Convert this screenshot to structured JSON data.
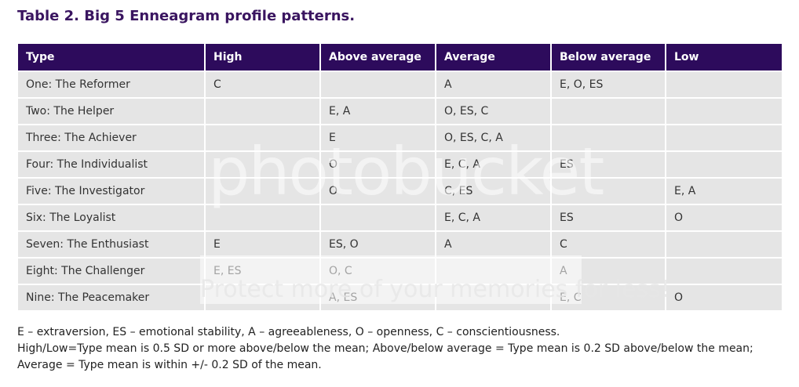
{
  "title": "Table 2. Big 5 Enneagram profile patterns.",
  "table": {
    "header": [
      "Type",
      "High",
      "Above average",
      "Average",
      "Below average",
      "Low"
    ],
    "rows": [
      [
        "One: The Reformer",
        "C",
        null,
        "A",
        "E, O, ES",
        null
      ],
      [
        "Two: The Helper",
        null,
        "E, A",
        "O, ES, C",
        null,
        null
      ],
      [
        "Three: The Achiever",
        null,
        "E",
        "O, ES, C, A",
        null,
        null
      ],
      [
        "Four: The Individualist",
        null,
        "O",
        "E, C, A",
        "ES",
        null
      ],
      [
        "Five: The Investigator",
        null,
        "O",
        "C, ES",
        null,
        "E, A"
      ],
      [
        "Six: The Loyalist",
        null,
        null,
        "E, C, A",
        "ES",
        "O"
      ],
      [
        "Seven: The Enthusiast",
        "E",
        "ES, O",
        "A",
        "C",
        null
      ],
      [
        "Eight: The Challenger",
        "E, ES",
        "O, C",
        null,
        "A",
        null
      ],
      [
        "Nine: The Peacemaker",
        null,
        "A, ES",
        null,
        "E, C",
        "O"
      ]
    ]
  },
  "notes": [
    "E – extraversion, ES – emotional stability, A – agreeableness, O – openness, C – conscientiousness.",
    "High/Low=Type mean is 0.5 SD or more above/below the mean; Above/below average = Type mean is 0.2 SD above/below the mean; Average =  Type mean is within +/- 0.2 SD of the mean."
  ],
  "watermark": {
    "logo": "photobucket",
    "banner": "Protect more of your memories for less!"
  }
}
